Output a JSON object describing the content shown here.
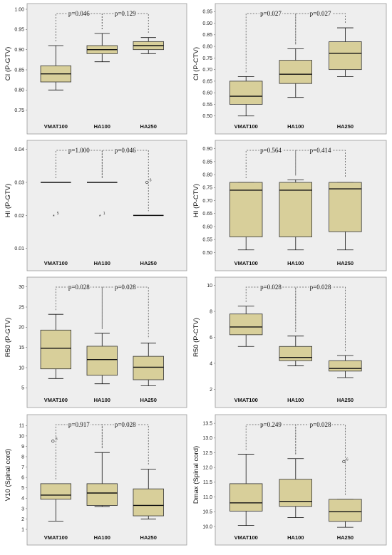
{
  "chart_data": [
    {
      "type": "box",
      "ylabel": "CI (P-GTV)",
      "ylim": [
        0.73,
        1.0
      ],
      "yticks": [
        "0.75",
        "0.80",
        "0.85",
        "0.90",
        "0.95",
        "1.00"
      ],
      "categories": [
        "VMAT100",
        "HA100",
        "HA250"
      ],
      "boxes": [
        {
          "min": 0.8,
          "q1": 0.82,
          "median": 0.84,
          "q3": 0.86,
          "max": 0.91
        },
        {
          "min": 0.87,
          "q1": 0.89,
          "median": 0.9,
          "q3": 0.91,
          "max": 0.94
        },
        {
          "min": 0.89,
          "q1": 0.9,
          "median": 0.91,
          "q3": 0.92,
          "max": 0.93
        }
      ],
      "pvalues": [
        "p=0.046",
        "p=0.129"
      ],
      "outliers": []
    },
    {
      "type": "box",
      "ylabel": "CI (P-CTV)",
      "ylim": [
        0.49,
        0.96
      ],
      "yticks": [
        "0.50",
        "0.55",
        "0.60",
        "0.65",
        "0.70",
        "0.75",
        "0.80",
        "0.85",
        "0.90",
        "0.95"
      ],
      "categories": [
        "VMAT100",
        "HA100",
        "HA250"
      ],
      "boxes": [
        {
          "min": 0.5,
          "q1": 0.55,
          "median": 0.585,
          "q3": 0.65,
          "max": 0.67
        },
        {
          "min": 0.58,
          "q1": 0.64,
          "median": 0.68,
          "q3": 0.74,
          "max": 0.79
        },
        {
          "min": 0.67,
          "q1": 0.7,
          "median": 0.77,
          "q3": 0.82,
          "max": 0.88
        }
      ],
      "pvalues": [
        "p=0.027",
        "p=0.027"
      ],
      "outliers": []
    },
    {
      "type": "box",
      "ylabel": "HI (P-GTV)",
      "ylim": [
        0.008,
        0.041
      ],
      "yticks": [
        "0.01",
        "0.02",
        "0.03",
        "0.04"
      ],
      "categories": [
        "VMAT100",
        "HA100",
        "HA250"
      ],
      "boxes": [
        {
          "min": 0.03,
          "q1": 0.03,
          "median": 0.03,
          "q3": 0.03,
          "max": 0.03
        },
        {
          "min": 0.03,
          "q1": 0.03,
          "median": 0.03,
          "q3": 0.03,
          "max": 0.03
        },
        {
          "min": 0.02,
          "q1": 0.02,
          "median": 0.02,
          "q3": 0.02,
          "max": 0.02
        }
      ],
      "pvalues": [
        "p=1.000",
        "p=0.046"
      ],
      "outliers": [
        {
          "group": 0,
          "value": 0.02,
          "label": "5",
          "marker": "star"
        },
        {
          "group": 1,
          "value": 0.02,
          "label": "1",
          "marker": "star"
        },
        {
          "group": 2,
          "value": 0.03,
          "label": "6",
          "marker": "circle"
        }
      ]
    },
    {
      "type": "box",
      "ylabel": "HI (P-CTV)",
      "ylim": [
        0.49,
        0.91
      ],
      "yticks": [
        "0.50",
        "0.55",
        "0.60",
        "0.65",
        "0.70",
        "0.75",
        "0.80",
        "0.85",
        "0.90"
      ],
      "categories": [
        "VMAT100",
        "HA100",
        "HA250"
      ],
      "boxes": [
        {
          "min": 0.51,
          "q1": 0.56,
          "median": 0.74,
          "q3": 0.77,
          "max": 0.77
        },
        {
          "min": 0.51,
          "q1": 0.56,
          "median": 0.74,
          "q3": 0.77,
          "max": 0.78
        },
        {
          "min": 0.51,
          "q1": 0.58,
          "median": 0.745,
          "q3": 0.77,
          "max": 0.77
        }
      ],
      "pvalues": [
        "p=0.564",
        "p=0.414"
      ],
      "outliers": []
    },
    {
      "type": "box",
      "ylabel": "R50 (P-GTV)",
      "ylim": [
        4,
        31
      ],
      "yticks": [
        "5",
        "10",
        "15",
        "20",
        "25",
        "30"
      ],
      "categories": [
        "VMAT100",
        "HA100",
        "HA250"
      ],
      "boxes": [
        {
          "min": 7.3,
          "q1": 9.7,
          "median": 14.8,
          "q3": 19.3,
          "max": 23.2
        },
        {
          "min": 6.0,
          "q1": 8.1,
          "median": 12.0,
          "q3": 15.3,
          "max": 18.5
        },
        {
          "min": 5.5,
          "q1": 7.0,
          "median": 10.1,
          "q3": 12.8,
          "max": 16.1
        }
      ],
      "pvalues": [
        "p=0.028",
        "p=0.028"
      ],
      "outliers": []
    },
    {
      "type": "box",
      "ylabel": "R50 (P-CTV)",
      "ylim": [
        1.8,
        10.2
      ],
      "yticks": [
        "2",
        "4",
        "6",
        "8",
        "10"
      ],
      "categories": [
        "VMAT100",
        "HA100",
        "HA250"
      ],
      "boxes": [
        {
          "min": 5.3,
          "q1": 6.2,
          "median": 6.8,
          "q3": 7.8,
          "max": 8.4
        },
        {
          "min": 3.8,
          "q1": 4.2,
          "median": 4.45,
          "q3": 5.3,
          "max": 6.1
        },
        {
          "min": 2.9,
          "q1": 3.4,
          "median": 3.6,
          "q3": 4.2,
          "max": 4.6
        }
      ],
      "pvalues": [
        "p=0.028",
        "p=0.028"
      ],
      "outliers": []
    },
    {
      "type": "box",
      "ylabel": "V10 (Spinal cord)",
      "ylim": [
        1,
        11.5
      ],
      "yticks": [
        "1",
        "2",
        "3",
        "4",
        "5",
        "6",
        "7",
        "8",
        "9",
        "10",
        "11"
      ],
      "categories": [
        "VMAT100",
        "HA100",
        "HA250"
      ],
      "boxes": [
        {
          "min": 1.8,
          "q1": 3.9,
          "median": 4.3,
          "q3": 5.4,
          "max": 5.4
        },
        {
          "min": 3.2,
          "q1": 3.3,
          "median": 4.5,
          "q3": 5.4,
          "max": 8.4
        },
        {
          "min": 2.0,
          "q1": 2.3,
          "median": 3.3,
          "q3": 4.9,
          "max": 6.8
        }
      ],
      "pvalues": [
        "p=0.917",
        "p=0.028"
      ],
      "outliers": [
        {
          "group": 0,
          "value": 9.5,
          "label": "6",
          "marker": "circle"
        }
      ]
    },
    {
      "type": "box",
      "ylabel": "Dmax (Spinal cord)",
      "ylim": [
        9.9,
        13.6
      ],
      "yticks": [
        "10.0",
        "10.5",
        "11.0",
        "11.5",
        "12.0",
        "12.5",
        "13.0",
        "13.5"
      ],
      "categories": [
        "VMAT100",
        "HA100",
        "HA250"
      ],
      "boxes": [
        {
          "min": 10.03,
          "q1": 10.52,
          "median": 10.8,
          "q3": 11.45,
          "max": 12.45
        },
        {
          "min": 10.3,
          "q1": 10.68,
          "median": 10.85,
          "q3": 11.6,
          "max": 12.3
        },
        {
          "min": 9.97,
          "q1": 10.17,
          "median": 10.5,
          "q3": 10.92,
          "max": 10.92
        }
      ],
      "pvalues": [
        "p=0.249",
        "p=0.028"
      ],
      "outliers": [
        {
          "group": 2,
          "value": 12.2,
          "label": "6",
          "marker": "circle"
        }
      ]
    }
  ]
}
